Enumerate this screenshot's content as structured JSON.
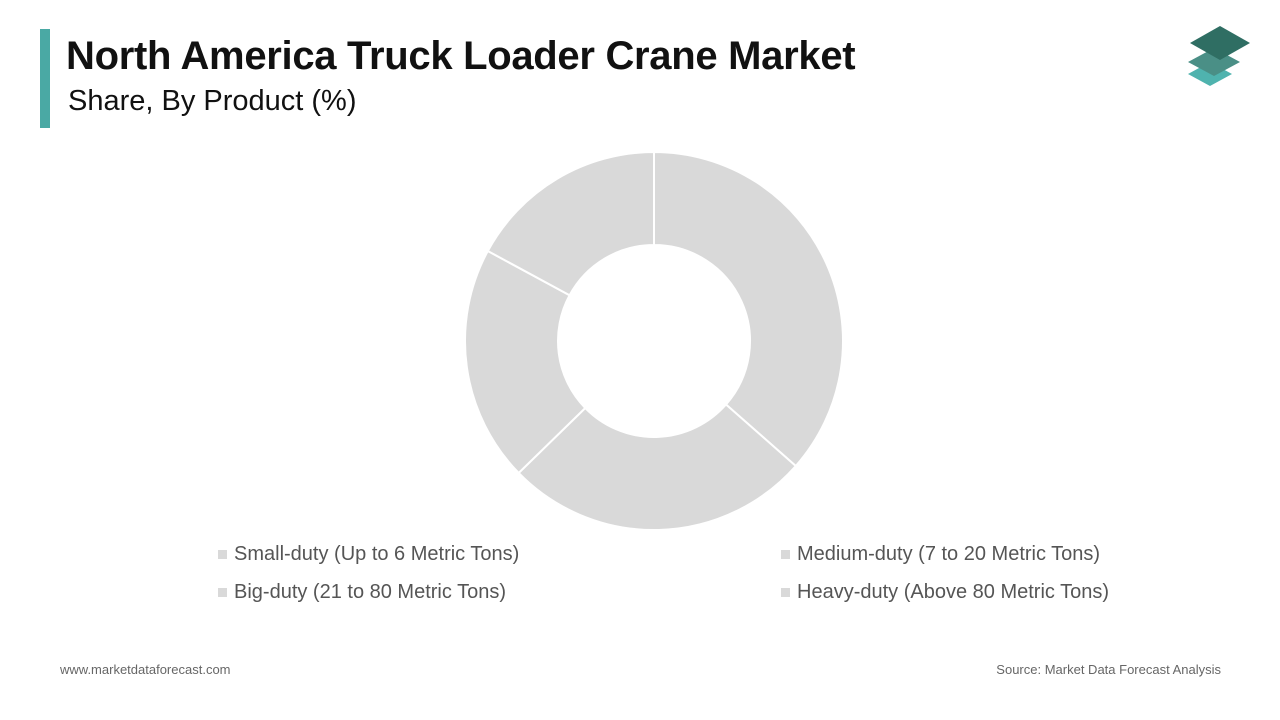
{
  "header": {
    "title": "North America Truck Loader Crane Market",
    "subtitle": "Share, By Product (%)"
  },
  "colors": {
    "accent": "#4aa9a4",
    "slice": "#d9d9d9",
    "separator": "#ffffff",
    "legend_swatch": "#d9d9d9",
    "logo_top": "#2f6e63",
    "logo_middle": "#4a8f86",
    "logo_bottom": "#4fb3ae"
  },
  "chart_data": {
    "type": "pie",
    "style": "donut",
    "categories": [
      "Small-duty (Up to 6 Metric Tons)",
      "Medium-duty (7 to 20 Metric Tons)",
      "Big-duty (21 to 80 Metric Tons)",
      "Heavy-duty (Above 80 Metric Tons)"
    ],
    "values": [
      36.5,
      26.2,
      20.2,
      17.1
    ],
    "legend_position": "bottom"
  },
  "footer": {
    "website": "www.marketdataforecast.com",
    "source": "Source: Market Data Forecast Analysis"
  }
}
